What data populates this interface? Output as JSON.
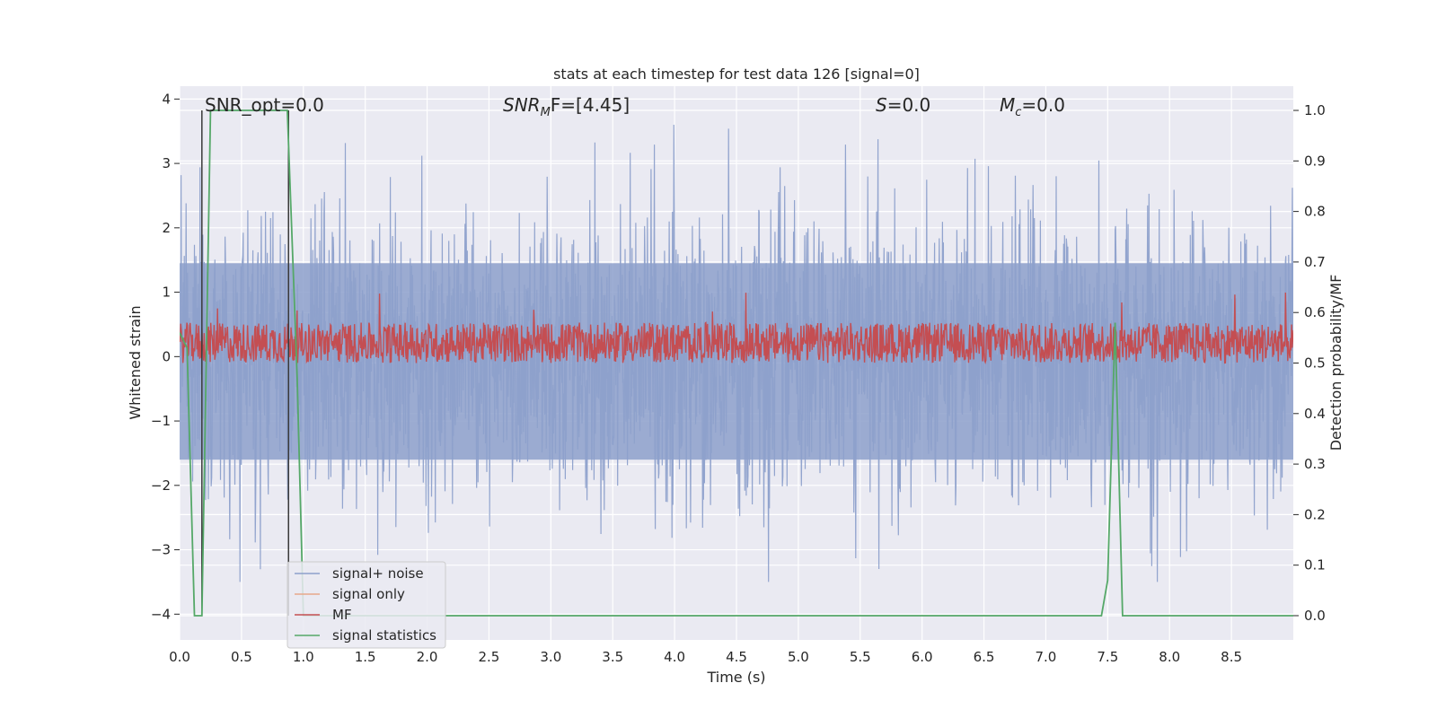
{
  "chart_data": {
    "type": "line",
    "title": "stats at each timestep for test data 126 [signal=0]",
    "xlabel": "Time (s)",
    "ylabel": "Whitened strain",
    "ylabel_right": "Detection probability/MF",
    "xlim": [
      0.0,
      9.0
    ],
    "ylim": [
      -4.4,
      4.2
    ],
    "ylim_right": [
      -0.048,
      1.048
    ],
    "x_ticks": [
      "0.0",
      "0.5",
      "1.0",
      "1.5",
      "2.0",
      "2.5",
      "3.0",
      "3.5",
      "4.0",
      "4.5",
      "5.0",
      "5.5",
      "6.0",
      "6.5",
      "7.0",
      "7.5",
      "8.0",
      "8.5"
    ],
    "y_ticks": [
      "4",
      "3",
      "2",
      "1",
      "0",
      "−1",
      "−2",
      "−3",
      "−4"
    ],
    "y_right_ticks": [
      "1.0",
      "0.9",
      "0.8",
      "0.7",
      "0.6",
      "0.5",
      "0.4",
      "0.3",
      "0.2",
      "0.1",
      "0.0"
    ],
    "grid": true,
    "legend_position": "lower left",
    "annotations": {
      "snr_opt": "SNR_opt=0.0",
      "snr_mf_base": "SNR",
      "snr_mf_sub": "M",
      "snr_mf_rest": "F=[4.45]",
      "s_base": "S",
      "s_rest": "=0.0",
      "mc_base": "M",
      "mc_sub": "c",
      "mc_rest": "=0.0"
    },
    "series": [
      {
        "name": "signal+ noise",
        "color": "#8da0cb",
        "description_values": "white noise, approximately symmetric about 0 with amplitude up to about ±3.5",
        "envelope": {
          "upper": 3.6,
          "lower": -3.5
        }
      },
      {
        "name": "signal only",
        "color": "#e8a88a",
        "values": []
      },
      {
        "name": "MF",
        "color": "#c44e52",
        "axis": "right",
        "band": [
          0.5,
          0.58
        ]
      },
      {
        "name": "signal statistics",
        "color": "#55a868",
        "axis": "right",
        "x": [
          0.0,
          0.06,
          0.12,
          0.18,
          0.25,
          0.87,
          0.95,
          1.0,
          7.45,
          7.5,
          7.56,
          7.62,
          7.7,
          9.0
        ],
        "y": [
          0.56,
          0.53,
          0.0,
          0.0,
          1.0,
          1.0,
          0.47,
          0.0,
          0.0,
          0.07,
          0.58,
          0.0,
          0.0,
          0.0
        ]
      }
    ],
    "vertical_markers": [
      0.18,
      0.88
    ]
  }
}
